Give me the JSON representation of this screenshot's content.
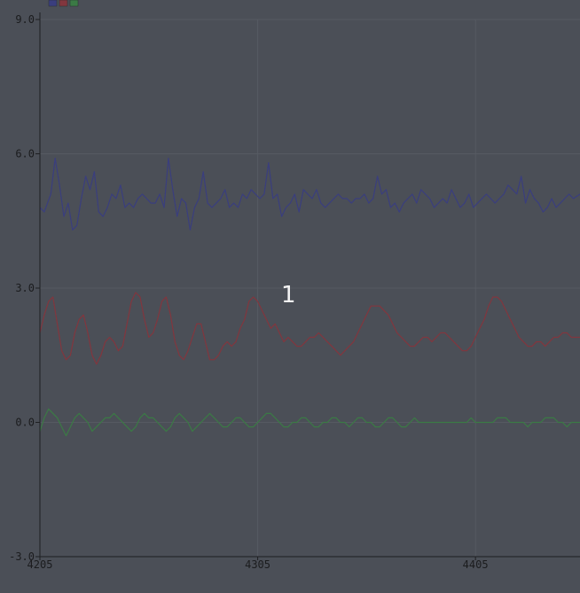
{
  "chart_data": {
    "type": "line",
    "x_ticks": [
      "4205",
      "4305",
      "4405"
    ],
    "x_tick_values": [
      4205,
      4305,
      4405
    ],
    "y_ticks": [
      "9.0",
      "6.0",
      "3.0",
      "0.0",
      "-3.0"
    ],
    "y_tick_values": [
      9.0,
      6.0,
      3.0,
      0.0,
      -3.0
    ],
    "xlim": [
      4205,
      4453
    ],
    "ylim": [
      -3.0,
      9.0
    ],
    "grid": true,
    "legend": "top-left",
    "annotation": "1",
    "series": [
      {
        "color": "#3a3e7e",
        "x": [
          4205,
          4207,
          4210,
          4212,
          4214,
          4216,
          4218,
          4220,
          4222,
          4224,
          4226,
          4228,
          4230,
          4232,
          4234,
          4236,
          4238,
          4240,
          4242,
          4244,
          4246,
          4248,
          4250,
          4252,
          4254,
          4256,
          4258,
          4260,
          4262,
          4264,
          4266,
          4268,
          4270,
          4272,
          4274,
          4276,
          4278,
          4280,
          4282,
          4284,
          4286,
          4288,
          4290,
          4292,
          4294,
          4296,
          4298,
          4300,
          4302,
          4304,
          4306,
          4308,
          4310,
          4312,
          4314,
          4316,
          4318,
          4320,
          4322,
          4324,
          4326,
          4328,
          4330,
          4332,
          4334,
          4336,
          4338,
          4340,
          4342,
          4344,
          4346,
          4348,
          4350,
          4352,
          4354,
          4356,
          4358,
          4360,
          4362,
          4364,
          4366,
          4368,
          4370,
          4372,
          4374,
          4376,
          4378,
          4380,
          4382,
          4384,
          4386,
          4388,
          4390,
          4392,
          4394,
          4396,
          4398,
          4400,
          4402,
          4404,
          4406,
          4408,
          4410,
          4412,
          4414,
          4416,
          4418,
          4420,
          4422,
          4424,
          4426,
          4428,
          4430,
          4432,
          4434,
          4436,
          4438,
          4440,
          4442,
          4444,
          4446,
          4448,
          4450,
          4453
        ],
        "y": [
          4.8,
          4.7,
          5.1,
          5.9,
          5.3,
          4.6,
          4.9,
          4.3,
          4.4,
          5.0,
          5.5,
          5.2,
          5.6,
          4.7,
          4.6,
          4.8,
          5.1,
          5.0,
          5.3,
          4.8,
          4.9,
          4.8,
          5.0,
          5.1,
          5.0,
          4.9,
          4.9,
          5.1,
          4.8,
          5.9,
          5.2,
          4.6,
          5.0,
          4.9,
          4.3,
          4.8,
          5.0,
          5.6,
          4.9,
          4.8,
          4.9,
          5.0,
          5.2,
          4.8,
          4.9,
          4.8,
          5.1,
          5.0,
          5.2,
          5.1,
          5.0,
          5.1,
          5.8,
          5.0,
          5.1,
          4.6,
          4.8,
          4.9,
          5.1,
          4.7,
          5.2,
          5.1,
          5.0,
          5.2,
          4.9,
          4.8,
          4.9,
          5.0,
          5.1,
          5.0,
          5.0,
          4.9,
          5.0,
          5.0,
          5.1,
          4.9,
          5.0,
          5.5,
          5.1,
          5.2,
          4.8,
          4.9,
          4.7,
          4.9,
          5.0,
          5.1,
          4.9,
          5.2,
          5.1,
          5.0,
          4.8,
          4.9,
          5.0,
          4.9,
          5.2,
          5.0,
          4.8,
          4.9,
          5.1,
          4.8,
          4.9,
          5.0,
          5.1,
          5.0,
          4.9,
          5.0,
          5.1,
          5.3,
          5.2,
          5.1,
          5.5,
          4.9,
          5.2,
          5.0,
          4.9,
          4.7,
          4.8,
          5.0,
          4.8,
          4.9,
          5.0,
          5.1,
          5.0,
          5.1
        ],
        "name": ""
      },
      {
        "color": "#82363e",
        "x": [
          4205,
          4207,
          4209,
          4211,
          4213,
          4215,
          4217,
          4219,
          4221,
          4223,
          4225,
          4227,
          4229,
          4231,
          4233,
          4235,
          4237,
          4239,
          4241,
          4243,
          4245,
          4247,
          4249,
          4251,
          4253,
          4255,
          4257,
          4259,
          4261,
          4263,
          4265,
          4267,
          4269,
          4271,
          4273,
          4275,
          4277,
          4279,
          4281,
          4283,
          4285,
          4287,
          4289,
          4291,
          4293,
          4295,
          4297,
          4299,
          4301,
          4303,
          4305,
          4307,
          4309,
          4311,
          4313,
          4315,
          4317,
          4319,
          4321,
          4323,
          4325,
          4327,
          4329,
          4331,
          4333,
          4335,
          4337,
          4339,
          4341,
          4343,
          4345,
          4347,
          4349,
          4351,
          4353,
          4355,
          4357,
          4359,
          4361,
          4363,
          4365,
          4367,
          4369,
          4371,
          4373,
          4375,
          4377,
          4379,
          4381,
          4383,
          4385,
          4387,
          4389,
          4391,
          4393,
          4395,
          4397,
          4399,
          4401,
          4403,
          4405,
          4407,
          4409,
          4411,
          4413,
          4415,
          4417,
          4419,
          4421,
          4423,
          4425,
          4427,
          4429,
          4431,
          4433,
          4435,
          4437,
          4439,
          4441,
          4443,
          4445,
          4447,
          4449,
          4451,
          4453
        ],
        "y": [
          2.0,
          2.4,
          2.7,
          2.8,
          2.2,
          1.6,
          1.4,
          1.5,
          2.0,
          2.3,
          2.4,
          2.0,
          1.5,
          1.3,
          1.5,
          1.8,
          1.9,
          1.8,
          1.6,
          1.7,
          2.2,
          2.7,
          2.9,
          2.8,
          2.3,
          1.9,
          2.0,
          2.3,
          2.7,
          2.8,
          2.4,
          1.8,
          1.5,
          1.4,
          1.6,
          1.9,
          2.2,
          2.2,
          1.8,
          1.4,
          1.4,
          1.5,
          1.7,
          1.8,
          1.7,
          1.8,
          2.1,
          2.3,
          2.7,
          2.8,
          2.7,
          2.5,
          2.3,
          2.1,
          2.2,
          2.0,
          1.8,
          1.9,
          1.8,
          1.7,
          1.7,
          1.8,
          1.9,
          1.9,
          2.0,
          1.9,
          1.8,
          1.7,
          1.6,
          1.5,
          1.6,
          1.7,
          1.8,
          2.0,
          2.2,
          2.4,
          2.6,
          2.6,
          2.6,
          2.5,
          2.4,
          2.2,
          2.0,
          1.9,
          1.8,
          1.7,
          1.7,
          1.8,
          1.9,
          1.9,
          1.8,
          1.9,
          2.0,
          2.0,
          1.9,
          1.8,
          1.7,
          1.6,
          1.6,
          1.7,
          1.9,
          2.1,
          2.3,
          2.6,
          2.8,
          2.8,
          2.7,
          2.5,
          2.3,
          2.1,
          1.9,
          1.8,
          1.7,
          1.7,
          1.8,
          1.8,
          1.7,
          1.8,
          1.9,
          1.9,
          2.0,
          2.0,
          1.9,
          1.9,
          1.9
        ],
        "name": ""
      },
      {
        "color": "#3b7a45",
        "x": [
          4205,
          4207,
          4209,
          4211,
          4213,
          4215,
          4217,
          4219,
          4221,
          4223,
          4225,
          4227,
          4229,
          4231,
          4233,
          4235,
          4237,
          4239,
          4241,
          4243,
          4245,
          4247,
          4249,
          4251,
          4253,
          4255,
          4257,
          4259,
          4261,
          4263,
          4265,
          4267,
          4269,
          4271,
          4273,
          4275,
          4277,
          4279,
          4281,
          4283,
          4285,
          4287,
          4289,
          4291,
          4293,
          4295,
          4297,
          4299,
          4301,
          4303,
          4305,
          4307,
          4309,
          4311,
          4313,
          4315,
          4317,
          4319,
          4321,
          4323,
          4325,
          4327,
          4329,
          4331,
          4333,
          4335,
          4337,
          4339,
          4341,
          4343,
          4345,
          4347,
          4349,
          4351,
          4353,
          4355,
          4357,
          4359,
          4361,
          4363,
          4365,
          4367,
          4369,
          4371,
          4373,
          4375,
          4377,
          4379,
          4381,
          4383,
          4385,
          4387,
          4389,
          4391,
          4393,
          4395,
          4397,
          4399,
          4401,
          4403,
          4405,
          4407,
          4409,
          4411,
          4413,
          4415,
          4417,
          4419,
          4421,
          4423,
          4425,
          4427,
          4429,
          4431,
          4433,
          4435,
          4437,
          4439,
          4441,
          4443,
          4445,
          4447,
          4449,
          4451,
          4453
        ],
        "y": [
          -0.2,
          0.1,
          0.3,
          0.2,
          0.1,
          -0.1,
          -0.3,
          -0.1,
          0.1,
          0.2,
          0.1,
          0.0,
          -0.2,
          -0.1,
          0.0,
          0.1,
          0.1,
          0.2,
          0.1,
          0.0,
          -0.1,
          -0.2,
          -0.1,
          0.1,
          0.2,
          0.1,
          0.1,
          0.0,
          -0.1,
          -0.2,
          -0.1,
          0.1,
          0.2,
          0.1,
          0.0,
          -0.2,
          -0.1,
          0.0,
          0.1,
          0.2,
          0.1,
          0.0,
          -0.1,
          -0.1,
          0.0,
          0.1,
          0.1,
          0.0,
          -0.1,
          -0.1,
          0.0,
          0.1,
          0.2,
          0.2,
          0.1,
          0.0,
          -0.1,
          -0.1,
          0.0,
          0.0,
          0.1,
          0.1,
          0.0,
          -0.1,
          -0.1,
          0.0,
          0.0,
          0.1,
          0.1,
          0.0,
          0.0,
          -0.1,
          0.0,
          0.1,
          0.1,
          0.0,
          0.0,
          -0.1,
          -0.1,
          0.0,
          0.1,
          0.1,
          0.0,
          -0.1,
          -0.1,
          0.0,
          0.1,
          0.0,
          0.0,
          0.0,
          0.0,
          0.0,
          0.0,
          0.0,
          0.0,
          0.0,
          0.0,
          0.0,
          0.0,
          0.1,
          0.0,
          0.0,
          0.0,
          0.0,
          0.0,
          0.1,
          0.1,
          0.1,
          0.0,
          0.0,
          0.0,
          0.0,
          -0.1,
          0.0,
          0.0,
          0.0,
          0.1,
          0.1,
          0.1,
          0.0,
          0.0,
          -0.1,
          0.0,
          0.0,
          0.0
        ],
        "name": ""
      }
    ]
  },
  "colors": {
    "background": "#4b4f57",
    "axis": "#1e1f22",
    "grid": "#565a62",
    "tick_text": "#1b1c1e",
    "annotation": "#f4f4f4"
  }
}
